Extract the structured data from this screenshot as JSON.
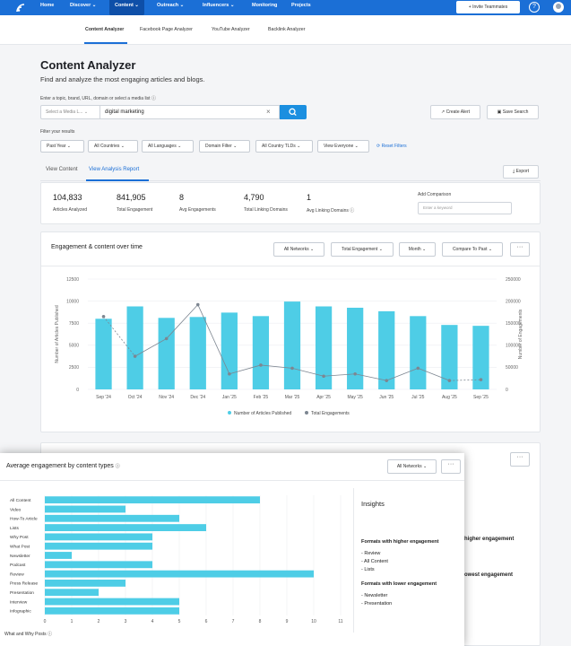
{
  "nav": {
    "items": [
      "Home",
      "Discover ⌄",
      "Content ⌄",
      "Outreach ⌄",
      "Influencers ⌄",
      "Monitoring",
      "Projects"
    ],
    "invite": "+ Invite Teammates"
  },
  "subnav": [
    "Content Analyzer",
    "Facebook Page Analyzer",
    "YouTube Analyzer",
    "Backlink Analyzer"
  ],
  "header": {
    "title": "Content Analyzer",
    "subtitle": "Find and analyze the most engaging articles and blogs."
  },
  "search": {
    "label": "Enter a topic, brand, URL, domain or select a media list",
    "media_placeholder": "Select a Media L...",
    "query": "digital marketing",
    "create_alert": "Create Alert",
    "save_search": "Save Search"
  },
  "filters": {
    "label": "Filter your results",
    "buttons": [
      "Past Year ⌄",
      "All Countries ⌄",
      "All Languages ⌄",
      "Domain Filter ⌄",
      "All Country TLDs ⌄",
      "View Everyone ⌄"
    ],
    "reset": "Reset Filters"
  },
  "tabs": [
    "View Content",
    "View Analysis Report"
  ],
  "export": "Export",
  "stats": [
    {
      "value": "104,833",
      "label": "Articles Analyzed"
    },
    {
      "value": "841,905",
      "label": "Total Engagement"
    },
    {
      "value": "8",
      "label": "Avg Engagements"
    },
    {
      "value": "4,790",
      "label": "Total Linking Domains"
    },
    {
      "value": "1",
      "label": "Avg Linking Domains"
    }
  ],
  "comparison": {
    "label": "Add Comparison",
    "placeholder": "Enter a keyword"
  },
  "engagement_card": {
    "title": "Engagement & content over time",
    "dropdowns": [
      "All Networks ⌄",
      "Total Engagement ⌄",
      "Month ⌄",
      "Compare To Past ⌄"
    ],
    "more": "···"
  },
  "content_types_card": {
    "title": "Average engagement by content types",
    "dropdown": "All Networks ⌄",
    "more": "···",
    "footer": "What and Why Posts"
  },
  "insights": {
    "title": "Insights",
    "higher_heading": "Formats with higher engagement",
    "higher": [
      "- Review",
      "- All Content",
      "- Lists"
    ],
    "lower_heading": "Formats with lower engagement",
    "lower": [
      "- Newsletter",
      "- Presentation"
    ]
  },
  "behind": {
    "higher": "higher engagement",
    "lowest": "owest engagement",
    "more": "···"
  },
  "colors": {
    "brand": "#1b6fd6",
    "bar": "#4ecde6",
    "line": "#7d8691"
  },
  "chart_data": [
    {
      "type": "bar",
      "categories": [
        "Sep '24",
        "Oct '24",
        "Nov '24",
        "Dec '24",
        "Jan '25",
        "Feb '25",
        "Mar '25",
        "Apr '25",
        "May '25",
        "Jun '25",
        "Jul '25",
        "Aug '25",
        "Sep '25"
      ],
      "series": [
        {
          "name": "Number of Articles Published",
          "type": "bar",
          "axis": "left",
          "values": [
            8000,
            9400,
            8100,
            8200,
            8700,
            8300,
            9950,
            9400,
            9250,
            8850,
            8300,
            7300,
            7200
          ]
        },
        {
          "name": "Total Engagements",
          "type": "line",
          "axis": "right",
          "values": [
            165000,
            75000,
            115000,
            192000,
            35000,
            55000,
            48000,
            30000,
            35000,
            20000,
            48000,
            20000,
            22000
          ]
        }
      ],
      "ylabel": "Number of Articles Published",
      "y2label": "Number of Engagements",
      "ylim": [
        0,
        12500
      ],
      "y2lim": [
        0,
        250000
      ],
      "yticks": [
        0,
        2500,
        5000,
        7500,
        10000,
        12500
      ],
      "y2ticks": [
        0,
        50000,
        100000,
        150000,
        200000,
        250000
      ],
      "legend": "bottom"
    },
    {
      "type": "bar",
      "orientation": "horizontal",
      "categories": [
        "All Content",
        "Video",
        "How-To Article",
        "Lists",
        "Why Post",
        "What Post",
        "Newsletter",
        "Podcast",
        "Review",
        "Press Release",
        "Presentation",
        "Interview",
        "Infographic"
      ],
      "values": [
        8,
        3,
        5,
        6,
        4,
        4,
        1,
        4,
        10,
        3,
        2,
        5,
        5
      ],
      "xlim": [
        0,
        11
      ],
      "xticks": [
        0,
        1,
        2,
        3,
        4,
        5,
        6,
        7,
        8,
        9,
        10,
        11
      ]
    }
  ]
}
